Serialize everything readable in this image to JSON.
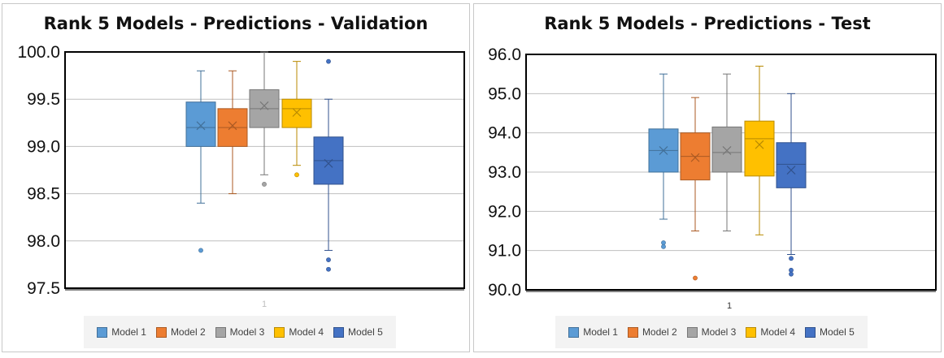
{
  "chart_data": [
    {
      "type": "box",
      "title": "Rank 5 Models - Predictions - Validation",
      "category_label": "1",
      "ylim": [
        97.5,
        100.0
      ],
      "yticks": [
        {
          "value": 97.5,
          "label": "97.5"
        },
        {
          "value": 98.0,
          "label": "98.0"
        },
        {
          "value": 98.5,
          "label": "98.5"
        },
        {
          "value": 99.0,
          "label": "99.0"
        },
        {
          "value": 99.5,
          "label": "99.5"
        },
        {
          "value": 100.0,
          "label": "100.0"
        }
      ],
      "grid": true,
      "legend_position": "bottom",
      "series": [
        {
          "name": "Model 1",
          "color": "#5b9bd5",
          "min": 98.4,
          "q1": 99.0,
          "median": 99.2,
          "q3": 99.47,
          "max": 99.8,
          "mean": 99.22,
          "outliers": [
            97.9
          ]
        },
        {
          "name": "Model 2",
          "color": "#ed7d31",
          "min": 98.5,
          "q1": 99.0,
          "median": 99.2,
          "q3": 99.4,
          "max": 99.8,
          "mean": 99.22,
          "outliers": []
        },
        {
          "name": "Model 3",
          "color": "#a5a5a5",
          "min": 98.7,
          "q1": 99.2,
          "median": 99.4,
          "q3": 99.6,
          "max": 100.0,
          "mean": 99.43,
          "outliers": [
            98.6
          ]
        },
        {
          "name": "Model 4",
          "color": "#ffc000",
          "min": 98.8,
          "q1": 99.2,
          "median": 99.4,
          "q3": 99.5,
          "max": 99.9,
          "mean": 99.36,
          "outliers": [
            98.7
          ]
        },
        {
          "name": "Model 5",
          "color": "#4472c4",
          "min": 97.9,
          "q1": 98.6,
          "median": 98.85,
          "q3": 99.1,
          "max": 99.5,
          "mean": 98.82,
          "outliers": [
            99.9,
            97.8,
            97.7
          ]
        }
      ]
    },
    {
      "type": "box",
      "title": "Rank 5 Models - Predictions - Test",
      "category_label": "1",
      "ylim": [
        90.0,
        96.0
      ],
      "yticks": [
        {
          "value": 90.0,
          "label": "90.0"
        },
        {
          "value": 91.0,
          "label": "91.0"
        },
        {
          "value": 92.0,
          "label": "92.0"
        },
        {
          "value": 93.0,
          "label": "93.0"
        },
        {
          "value": 94.0,
          "label": "94.0"
        },
        {
          "value": 95.0,
          "label": "95.0"
        },
        {
          "value": 96.0,
          "label": "96.0"
        }
      ],
      "grid": true,
      "legend_position": "bottom",
      "series": [
        {
          "name": "Model 1",
          "color": "#5b9bd5",
          "min": 91.8,
          "q1": 93.0,
          "median": 93.55,
          "q3": 94.1,
          "max": 95.5,
          "mean": 93.55,
          "outliers": [
            91.2,
            91.1
          ]
        },
        {
          "name": "Model 2",
          "color": "#ed7d31",
          "min": 91.5,
          "q1": 92.8,
          "median": 93.4,
          "q3": 94.0,
          "max": 94.9,
          "mean": 93.37,
          "outliers": [
            90.3
          ]
        },
        {
          "name": "Model 3",
          "color": "#a5a5a5",
          "min": 91.5,
          "q1": 93.0,
          "median": 93.5,
          "q3": 94.15,
          "max": 95.5,
          "mean": 93.55,
          "outliers": []
        },
        {
          "name": "Model 4",
          "color": "#ffc000",
          "min": 91.4,
          "q1": 92.9,
          "median": 93.85,
          "q3": 94.3,
          "max": 95.7,
          "mean": 93.7,
          "outliers": []
        },
        {
          "name": "Model 5",
          "color": "#4472c4",
          "min": 90.9,
          "q1": 92.6,
          "median": 93.2,
          "q3": 93.75,
          "max": 95.0,
          "mean": 93.05,
          "outliers": [
            90.8,
            90.5,
            90.4
          ]
        }
      ]
    }
  ]
}
